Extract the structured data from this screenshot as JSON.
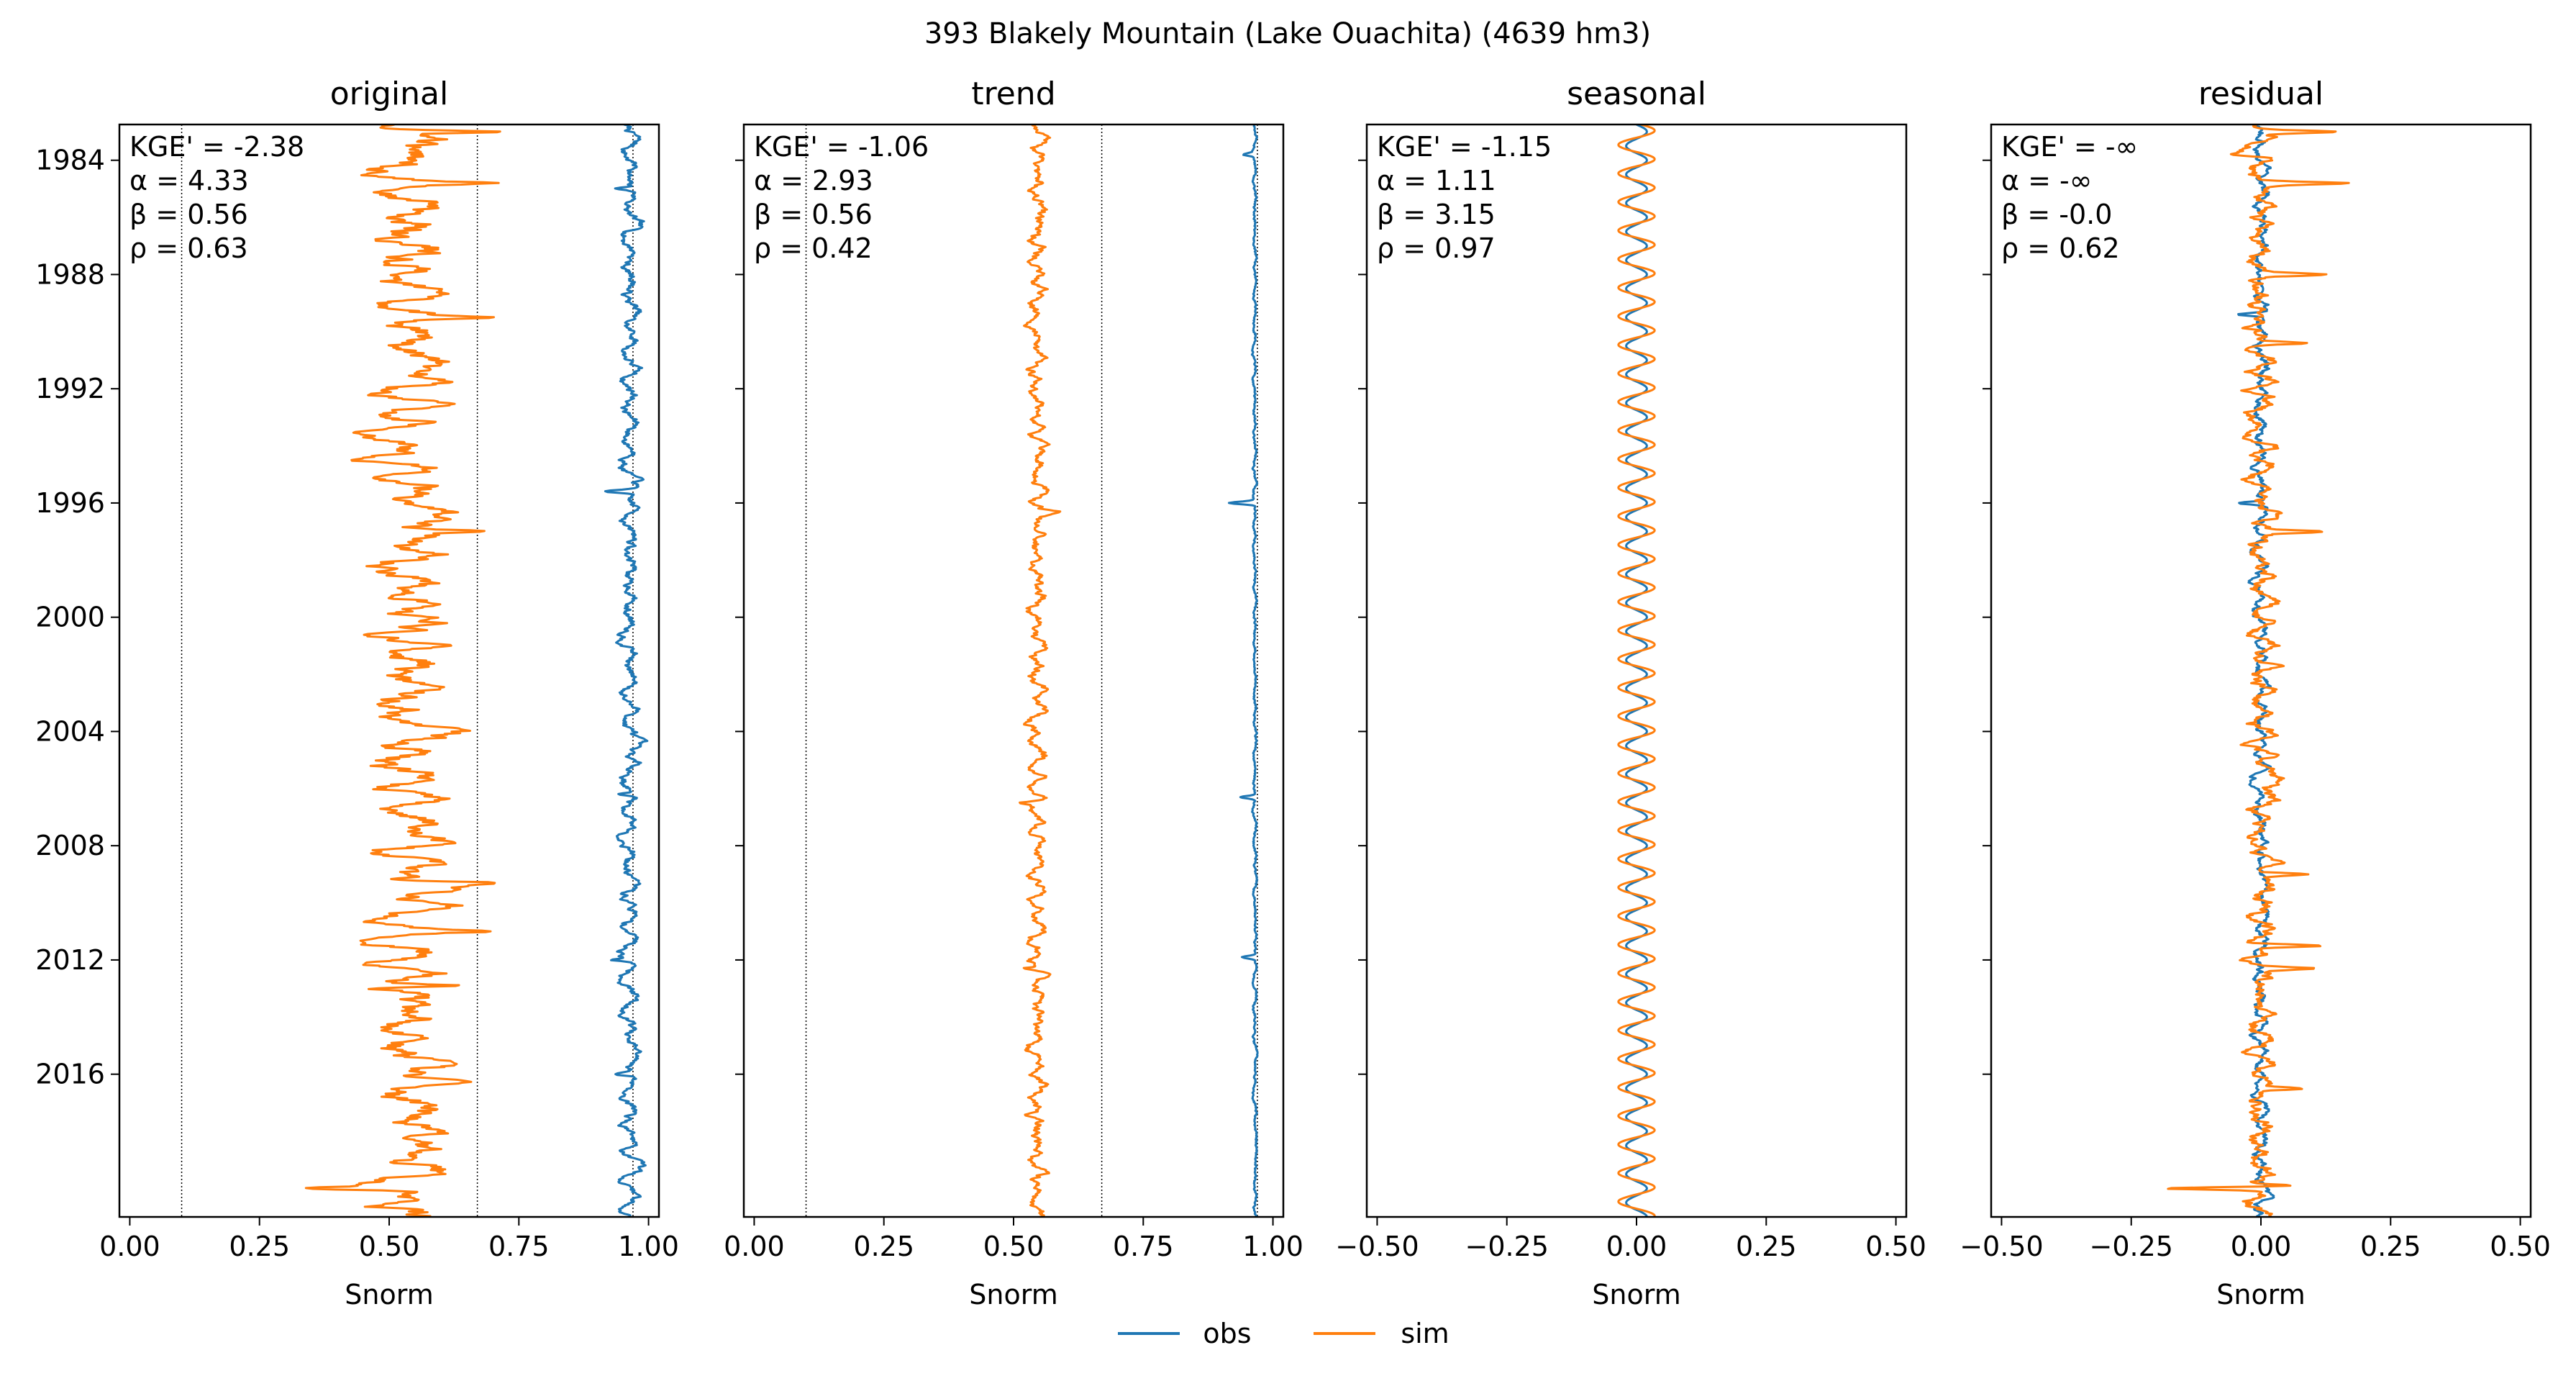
{
  "figure": {
    "suptitle": "393  Blakely Mountain (Lake Ouachita) (4639 hm3)",
    "colors": {
      "obs": "#1f77b4",
      "sim": "#ff7f0e",
      "axes": "#000000",
      "reference_lines": "#000000"
    },
    "legend": {
      "placement": "bottom-center",
      "entries": [
        "obs",
        "sim"
      ]
    }
  },
  "chart_data": [
    {
      "type": "line",
      "title": "original",
      "xlabel": "Snorm",
      "ylabel": "",
      "xlim": [
        -0.02,
        1.02
      ],
      "ylim": [
        "2020-12-31",
        "1982-10-01"
      ],
      "xticks": [
        "0.00",
        "0.25",
        "0.50",
        "0.75",
        "1.00"
      ],
      "yticks": [
        "1984",
        "1988",
        "1992",
        "1996",
        "2000",
        "2004",
        "2008",
        "2012",
        "2016"
      ],
      "reference_lines_x": [
        0.1,
        0.67,
        0.97
      ],
      "metrics": [
        "KGE' = -2.38",
        "α = 4.33",
        "β = 0.56",
        "ρ = 0.63"
      ],
      "series": [
        {
          "name": "obs",
          "start": "1982-10-01",
          "end": "2020-12-31",
          "center": 0.965,
          "amplitude": 0.015,
          "spikes": [
            [
              1995.6,
              -0.045
            ],
            [
              2006.2,
              -0.04
            ],
            [
              2012.0,
              -0.035
            ],
            [
              2016.0,
              -0.03
            ],
            [
              1985.0,
              -0.025
            ]
          ]
        },
        {
          "name": "sim",
          "start": "1982-10-01",
          "end": "2020-12-31",
          "center": 0.54,
          "amplitude": 0.06,
          "spikes": [
            [
              1983.0,
              0.16
            ],
            [
              1984.8,
              0.13
            ],
            [
              1989.5,
              0.12
            ],
            [
              1997.0,
              0.11
            ],
            [
              2009.3,
              0.14
            ],
            [
              2011.0,
              0.12
            ],
            [
              2012.9,
              0.12
            ],
            [
              2020.0,
              -0.15
            ]
          ]
        }
      ]
    },
    {
      "type": "line",
      "title": "trend",
      "xlabel": "Snorm",
      "ylabel": "",
      "xlim": [
        -0.02,
        1.02
      ],
      "ylim": [
        "2020-12-31",
        "1982-10-01"
      ],
      "xticks": [
        "0.00",
        "0.25",
        "0.50",
        "0.75",
        "1.00"
      ],
      "yticks": [
        "1984",
        "1988",
        "1992",
        "1996",
        "2000",
        "2004",
        "2008",
        "2012",
        "2016"
      ],
      "reference_lines_x": [
        0.1,
        0.67,
        0.97
      ],
      "metrics": [
        "KGE' = -1.06",
        "α = 2.93",
        "β = 0.56",
        "ρ = 0.42"
      ],
      "series": [
        {
          "name": "obs",
          "start": "1982-10-01",
          "end": "2020-12-31",
          "center": 0.965,
          "amplitude": 0.003,
          "spikes": [
            [
              1983.8,
              -0.02
            ],
            [
              1996.0,
              -0.05
            ],
            [
              2006.3,
              -0.03
            ],
            [
              2011.9,
              -0.025
            ]
          ]
        },
        {
          "name": "sim",
          "start": "1982-10-01",
          "end": "2020-12-31",
          "center": 0.545,
          "amplitude": 0.015,
          "spikes": [
            [
              1996.3,
              0.03
            ],
            [
              2006.5,
              -0.03
            ],
            [
              2012.3,
              -0.03
            ]
          ]
        }
      ]
    },
    {
      "type": "line",
      "title": "seasonal",
      "xlabel": "Snorm",
      "ylabel": "",
      "xlim": [
        -0.52,
        0.52
      ],
      "ylim": [
        "2020-12-31",
        "1982-10-01"
      ],
      "xticks": [
        "−0.50",
        "−0.25",
        "0.00",
        "0.25",
        "0.50"
      ],
      "yticks": [
        "1984",
        "1988",
        "1992",
        "1996",
        "2000",
        "2004",
        "2008",
        "2012",
        "2016"
      ],
      "reference_lines_x": [],
      "metrics": [
        "KGE' = -1.15",
        "α = 1.11",
        "β = 3.15",
        "ρ = 0.97"
      ],
      "series": [
        {
          "name": "obs",
          "start": "1982-10-01",
          "end": "2020-12-31",
          "center": 0.0,
          "amplitude": 0.02,
          "spikes": []
        },
        {
          "name": "sim",
          "start": "1982-10-01",
          "end": "2020-12-31",
          "center": 0.0,
          "amplitude": 0.035,
          "spikes": []
        }
      ]
    },
    {
      "type": "line",
      "title": "residual",
      "xlabel": "Snorm",
      "ylabel": "",
      "xlim": [
        -0.52,
        0.52
      ],
      "ylim": [
        "2020-12-31",
        "1982-10-01"
      ],
      "xticks": [
        "−0.50",
        "−0.25",
        "0.00",
        "0.25",
        "0.50"
      ],
      "yticks": [
        "1984",
        "1988",
        "1992",
        "1996",
        "2000",
        "2004",
        "2008",
        "2012",
        "2016"
      ],
      "reference_lines_x": [],
      "metrics": [
        "KGE' = -∞",
        "α = -∞",
        "β = -0.0",
        "ρ = 0.62"
      ],
      "series": [
        {
          "name": "obs",
          "start": "1982-10-01",
          "end": "2020-12-31",
          "center": 0.0,
          "amplitude": 0.012,
          "spikes": [
            [
              1989.4,
              -0.05
            ],
            [
              1996.0,
              -0.04
            ]
          ]
        },
        {
          "name": "sim",
          "start": "1982-10-01",
          "end": "2020-12-31",
          "center": 0.0,
          "amplitude": 0.025,
          "spikes": [
            [
              1983.0,
              0.15
            ],
            [
              1983.8,
              -0.06
            ],
            [
              1984.8,
              0.16
            ],
            [
              1988.0,
              0.11
            ],
            [
              1990.4,
              0.09
            ],
            [
              1997.0,
              0.11
            ],
            [
              2009.0,
              0.1
            ],
            [
              2011.5,
              0.12
            ],
            [
              2012.3,
              0.11
            ],
            [
              2016.5,
              0.1
            ],
            [
              2020.0,
              -0.18
            ],
            [
              2019.9,
              0.1
            ]
          ]
        }
      ]
    }
  ]
}
